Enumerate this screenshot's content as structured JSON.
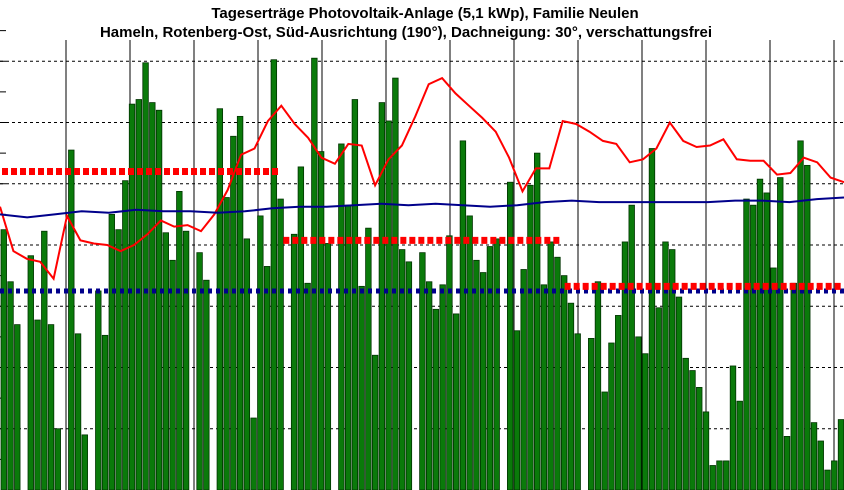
{
  "chart_data": {
    "type": "bar",
    "title": "Tageserträge Photovoltaik-Anlage (5,1 kWp),  Familie Neulen",
    "subtitle": "Hameln, Rotenberg-Ost, Süd-Ausrichtung (190°), Dachneigung: 30°, verschattungsfrei",
    "xlabel": "",
    "ylabel": "",
    "ylim": [
      0,
      32
    ],
    "grid": true,
    "legend": "none",
    "values": [
      17.0,
      13.6,
      10.8,
      0,
      15.3,
      11.1,
      16.9,
      10.8,
      4.0,
      0,
      22.2,
      10.2,
      3.6,
      0,
      13.0,
      10.1,
      18.0,
      17.0,
      20.2,
      25.2,
      25.5,
      27.9,
      25.3,
      24.8,
      16.8,
      15.0,
      19.5,
      16.9,
      0,
      15.5,
      13.7,
      0,
      24.9,
      19.1,
      23.1,
      24.4,
      16.4,
      4.7,
      17.9,
      14.6,
      28.1,
      19.0,
      0,
      16.7,
      21.1,
      13.5,
      28.2,
      22.1,
      16.1,
      0,
      22.6,
      18.6,
      25.5,
      13.3,
      17.1,
      8.8,
      25.3,
      24.1,
      26.9,
      15.7,
      14.9,
      0,
      15.5,
      13.6,
      11.8,
      13.4,
      16.6,
      11.5,
      22.8,
      17.9,
      15.0,
      14.2,
      15.9,
      16.4,
      0,
      20.1,
      10.4,
      14.4,
      19.9,
      22.0,
      13.4,
      16.2,
      15.2,
      14.0,
      12.2,
      10.2,
      0,
      9.9,
      13.6,
      6.4,
      9.6,
      11.4,
      16.2,
      18.6,
      10.0,
      8.9,
      22.3,
      11.9,
      16.2,
      15.7,
      12.6,
      8.6,
      7.8,
      6.7,
      5.1,
      1.6,
      1.9,
      1.9,
      8.1,
      5.8,
      19.0,
      18.6,
      20.3,
      19.4,
      14.5,
      20.4,
      3.5,
      13.5,
      22.8,
      21.2,
      4.4,
      3.2,
      1.3,
      1.9,
      4.6
    ],
    "series": [
      {
        "type": "line",
        "color": "#ff0000",
        "values": [
          18.5,
          15.6,
          15.1,
          14.9,
          13.8,
          17.9,
          16.3,
          16.1,
          16.0,
          15.6,
          16.0,
          16.7,
          17.6,
          17.2,
          17.3,
          16.9,
          18.0,
          19.6,
          21.9,
          22.3,
          24.1,
          25.1,
          23.9,
          23.0,
          21.7,
          21.3,
          22.6,
          22.5,
          19.9,
          21.6,
          22.5,
          24.4,
          26.5,
          26.9,
          25.9,
          25.1,
          24.3,
          23.4,
          21.7,
          19.5,
          21.0,
          21.0,
          24.1,
          23.9,
          23.4,
          22.8,
          22.6,
          21.4,
          21.6,
          22.3,
          24.0,
          22.8,
          22.4,
          22.5,
          22.9,
          21.6,
          21.5,
          21.5,
          20.6,
          20.7,
          21.7,
          21.4,
          20.4,
          20.1
        ]
      },
      {
        "type": "line",
        "color": "#00008b",
        "values": [
          18.0,
          17.8,
          18.0,
          18.2,
          18.1,
          18.3,
          18.2,
          18.2,
          18.1,
          18.2,
          18.4,
          18.5,
          18.5,
          18.6,
          18.7,
          18.6,
          18.7,
          18.6,
          18.5,
          18.6,
          18.8,
          18.9,
          18.8,
          18.8,
          18.8,
          18.8,
          18.8,
          18.9,
          18.9,
          18.8,
          19.0,
          19.1
        ]
      },
      {
        "type": "dotted-line",
        "color": "#00008b",
        "value": 13.0
      },
      {
        "type": "step",
        "color": "#ff0000",
        "segments": [
          {
            "value": 20.8
          },
          {
            "value": 16.3
          },
          {
            "value": 13.3
          }
        ]
      }
    ]
  }
}
